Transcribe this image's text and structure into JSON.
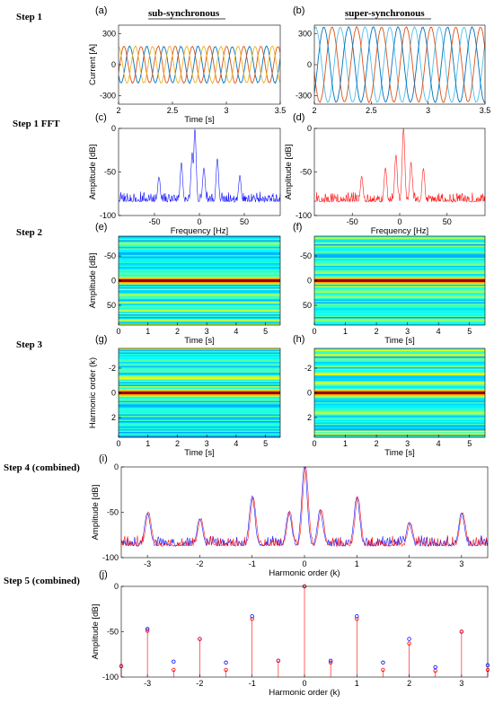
{
  "step_labels": [
    "Step 1",
    "Step 1 FFT",
    "Step 2",
    "Step 3",
    "Step 4 (combined)",
    "Step 5 (combined)"
  ],
  "column_headers": [
    "sub-synchronous",
    "super-synchronous"
  ],
  "colors": {
    "blue": "#0000ff",
    "red": "#ff0000",
    "phaseA": "#0072bd",
    "phaseB": "#d95319",
    "phaseC": "#edb120",
    "phaseA2": "#4dbeee"
  },
  "chart_data": [
    {
      "id": "a",
      "panel_label": "(a)",
      "type": "line",
      "xlabel": "Time [s]",
      "ylabel": "Current [A]",
      "xlim": [
        2,
        3.5
      ],
      "ylim": [
        -380,
        380
      ],
      "xticks": [
        2,
        2.5,
        3,
        3.5
      ],
      "yticks": [
        300,
        0,
        -300
      ],
      "xtick_labels": [
        "2",
        "2.5",
        "3",
        "3.5"
      ],
      "ytick_labels": [
        "300",
        "0",
        "-300"
      ],
      "series": [
        {
          "amplitude": 175,
          "frequency_hz": 6.3,
          "phases_deg": [
            0,
            120,
            240
          ]
        }
      ]
    },
    {
      "id": "b",
      "panel_label": "(b)",
      "type": "line",
      "xlabel": "",
      "ylabel": "",
      "xlim": [
        2,
        3.5
      ],
      "ylim": [
        -380,
        380
      ],
      "xticks": [
        2,
        2.5,
        3,
        3.5
      ],
      "yticks": [
        300,
        0,
        -300
      ],
      "xtick_labels": [
        "2",
        "2.5",
        "3",
        "3.5"
      ],
      "ytick_labels": [
        "300",
        "0",
        "-300"
      ],
      "series": [
        {
          "amplitude": 360,
          "frequency_hz": 4.6,
          "phases_deg": [
            0,
            120,
            240
          ]
        }
      ]
    },
    {
      "id": "c",
      "panel_label": "(c)",
      "type": "line",
      "xlabel": "Frequency [Hz]",
      "ylabel": "Amplitude [dB]",
      "xlim": [
        -90,
        90
      ],
      "ylim": [
        -100,
        0
      ],
      "xticks": [
        -50,
        0,
        50
      ],
      "yticks": [
        0,
        -50,
        -100
      ],
      "xtick_labels": [
        "-50",
        "0",
        "50"
      ],
      "ytick_labels": [
        "0",
        "-50",
        "-100"
      ],
      "noise_floor_db": -85,
      "peaks": [
        {
          "x": -5,
          "db": 0
        },
        {
          "x": -8,
          "db": -28
        },
        {
          "x": 5,
          "db": -45
        },
        {
          "x": -20,
          "db": -40
        },
        {
          "x": 20,
          "db": -35
        },
        {
          "x": -45,
          "db": -55
        },
        {
          "x": 45,
          "db": -55
        }
      ]
    },
    {
      "id": "d",
      "panel_label": "(d)",
      "type": "line",
      "xlabel": "Frequency [Hz]",
      "ylabel": "Amplitude [dB]",
      "xlim": [
        -90,
        90
      ],
      "ylim": [
        -100,
        0
      ],
      "xticks": [
        -50,
        0,
        50
      ],
      "yticks": [
        0,
        -50,
        -100
      ],
      "xtick_labels": [
        "-50",
        "0",
        "50"
      ],
      "ytick_labels": [
        "0",
        "-50",
        "-100"
      ],
      "noise_floor_db": -85,
      "peaks": [
        {
          "x": 4,
          "db": 0
        },
        {
          "x": -4,
          "db": -30
        },
        {
          "x": 12,
          "db": -40
        },
        {
          "x": -15,
          "db": -45
        },
        {
          "x": 25,
          "db": -45
        },
        {
          "x": -40,
          "db": -55
        }
      ]
    },
    {
      "id": "e",
      "panel_label": "(e)",
      "type": "heatmap",
      "xlabel": "Time [s]",
      "ylabel": "Amplitude [dB]",
      "xlim": [
        0,
        5.5
      ],
      "ylim": [
        -90,
        90
      ],
      "xticks": [
        0,
        1,
        2,
        3,
        4,
        5
      ],
      "yticks": [
        -50,
        0,
        50
      ],
      "xtick_labels": [
        "0",
        "1",
        "2",
        "3",
        "4",
        "5"
      ],
      "ytick_labels": [
        "-50",
        "0",
        "50"
      ],
      "hot_row": 0
    },
    {
      "id": "f",
      "panel_label": "(f)",
      "type": "heatmap",
      "xlabel": "Time [s]",
      "ylabel": "",
      "xlim": [
        0,
        5.5
      ],
      "ylim": [
        -90,
        90
      ],
      "xticks": [
        0,
        1,
        2,
        3,
        4,
        5
      ],
      "yticks": [
        -50,
        0,
        50
      ],
      "xtick_labels": [
        "0",
        "1",
        "2",
        "3",
        "4",
        "5"
      ],
      "ytick_labels": [
        "-50",
        "0",
        "50"
      ],
      "hot_row": 0
    },
    {
      "id": "g",
      "panel_label": "(g)",
      "type": "heatmap",
      "xlabel": "Time [s]",
      "ylabel": "Harmonic order (k)",
      "xlim": [
        0,
        5.5
      ],
      "ylim": [
        -3.6,
        3.6
      ],
      "xticks": [
        0,
        1,
        2,
        3,
        4,
        5
      ],
      "yticks": [
        -2,
        0,
        2
      ],
      "xtick_labels": [
        "0",
        "1",
        "2",
        "3",
        "4",
        "5"
      ],
      "ytick_labels": [
        "-2",
        "0",
        "2"
      ],
      "hot_row": 0
    },
    {
      "id": "h",
      "panel_label": "(h)",
      "type": "heatmap",
      "xlabel": "Time [s]",
      "ylabel": "",
      "xlim": [
        0,
        5.5
      ],
      "ylim": [
        -3.6,
        3.6
      ],
      "xticks": [
        0,
        1,
        2,
        3,
        4,
        5
      ],
      "yticks": [
        -2,
        0,
        2
      ],
      "xtick_labels": [
        "0",
        "1",
        "2",
        "3",
        "4",
        "5"
      ],
      "ytick_labels": [
        "-2",
        "0",
        "2"
      ],
      "hot_row": 0
    },
    {
      "id": "i",
      "panel_label": "(i)",
      "type": "line",
      "xlabel": "Harmonic order (k)",
      "ylabel": "Amplitude [dB]",
      "xlim": [
        -3.5,
        3.5
      ],
      "ylim": [
        -100,
        0
      ],
      "xticks": [
        -3,
        -2,
        -1,
        0,
        1,
        2,
        3
      ],
      "yticks": [
        0,
        -50,
        -100
      ],
      "xtick_labels": [
        "-3",
        "-2",
        "-1",
        "0",
        "1",
        "2",
        "3"
      ],
      "ytick_labels": [
        "0",
        "-50",
        "-100"
      ],
      "noise_floor_db": -88,
      "peaks": [
        {
          "x": -3,
          "db": -50
        },
        {
          "x": -2,
          "db": -57
        },
        {
          "x": -1,
          "db": -33
        },
        {
          "x": 0,
          "db": 0
        },
        {
          "x": 1,
          "db": -33
        },
        {
          "x": 2,
          "db": -62
        },
        {
          "x": 3,
          "db": -50
        },
        {
          "x": -0.3,
          "db": -50
        },
        {
          "x": 0.3,
          "db": -48
        }
      ]
    },
    {
      "id": "j",
      "panel_label": "(j)",
      "type": "scatter",
      "xlabel": "Harmonic order (k)",
      "ylabel": "Amplitude [dB]",
      "xlim": [
        -3.5,
        3.5
      ],
      "ylim": [
        -100,
        0
      ],
      "xticks": [
        -3,
        -2,
        -1,
        0,
        1,
        2,
        3
      ],
      "yticks": [
        0,
        -50,
        -100
      ],
      "xtick_labels": [
        "-3",
        "-2",
        "-1",
        "0",
        "1",
        "2",
        "3"
      ],
      "ytick_labels": [
        "0",
        "-50",
        "-100"
      ],
      "x": [
        -3.5,
        -3,
        -2.5,
        -2,
        -1.5,
        -1,
        -0.5,
        0,
        0.5,
        1,
        1.5,
        2,
        2.5,
        3,
        3.5
      ],
      "series": [
        {
          "color": "blue",
          "values": [
            -88,
            -47,
            -83,
            -58,
            -84,
            -33,
            -82,
            0,
            -82,
            -33,
            -84,
            -58,
            -89,
            -50,
            -87
          ]
        },
        {
          "color": "red",
          "values": [
            -88,
            -49,
            -92,
            -58,
            -92,
            -36,
            -82,
            0,
            -84,
            -36,
            -92,
            -63,
            -93,
            -50,
            -92
          ]
        }
      ]
    }
  ]
}
